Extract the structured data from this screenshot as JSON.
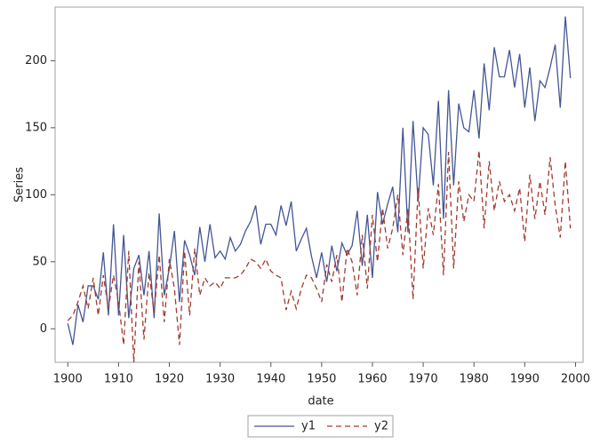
{
  "chart_data": {
    "type": "line",
    "xlabel": "date",
    "ylabel": "Series",
    "x": [
      1900,
      1901,
      1902,
      1903,
      1904,
      1905,
      1906,
      1907,
      1908,
      1909,
      1910,
      1911,
      1912,
      1913,
      1914,
      1915,
      1916,
      1917,
      1918,
      1919,
      1920,
      1921,
      1922,
      1923,
      1924,
      1925,
      1926,
      1927,
      1928,
      1929,
      1930,
      1931,
      1932,
      1933,
      1934,
      1935,
      1936,
      1937,
      1938,
      1939,
      1940,
      1941,
      1942,
      1943,
      1944,
      1945,
      1946,
      1947,
      1948,
      1949,
      1950,
      1951,
      1952,
      1953,
      1954,
      1955,
      1956,
      1957,
      1958,
      1959,
      1960,
      1961,
      1962,
      1963,
      1964,
      1965,
      1966,
      1967,
      1968,
      1969,
      1970,
      1971,
      1972,
      1973,
      1974,
      1975,
      1976,
      1977,
      1978,
      1979,
      1980,
      1981,
      1982,
      1983,
      1984,
      1985,
      1986,
      1987,
      1988,
      1989,
      1990,
      1991,
      1992,
      1993,
      1994,
      1995,
      1996,
      1997,
      1998,
      1999
    ],
    "series": [
      {
        "name": "y1",
        "color": "#445694",
        "dash": "solid",
        "values": [
          4,
          -12,
          18,
          5,
          32,
          32,
          22,
          57,
          10,
          78,
          10,
          70,
          8,
          45,
          55,
          25,
          58,
          8,
          86,
          25,
          45,
          73,
          20,
          66,
          55,
          40,
          76,
          50,
          78,
          53,
          58,
          52,
          68,
          58,
          63,
          73,
          80,
          92,
          63,
          78,
          78,
          70,
          92,
          77,
          95,
          58,
          67,
          75,
          54,
          38,
          57,
          35,
          62,
          43,
          64,
          55,
          62,
          88,
          47,
          85,
          38,
          102,
          78,
          93,
          106,
          72,
          150,
          72,
          155,
          95,
          150,
          145,
          107,
          170,
          82,
          178,
          107,
          168,
          150,
          147,
          178,
          142,
          198,
          163,
          210,
          188,
          188,
          208,
          180,
          205,
          165,
          195,
          155,
          185,
          180,
          195,
          212,
          165,
          233,
          187
        ]
      },
      {
        "name": "y2",
        "color": "#a23a2e",
        "dash": "dashed",
        "values": [
          6,
          10,
          20,
          32,
          15,
          38,
          10,
          40,
          15,
          40,
          20,
          -12,
          58,
          -25,
          50,
          -8,
          42,
          12,
          55,
          5,
          52,
          30,
          -12,
          58,
          10,
          60,
          25,
          38,
          32,
          35,
          30,
          38,
          38,
          38,
          40,
          45,
          52,
          50,
          45,
          52,
          43,
          40,
          38,
          14,
          28,
          15,
          30,
          40,
          38,
          30,
          20,
          48,
          35,
          55,
          20,
          60,
          50,
          25,
          70,
          30,
          85,
          50,
          90,
          60,
          75,
          100,
          55,
          90,
          22,
          105,
          45,
          90,
          70,
          108,
          40,
          132,
          45,
          110,
          80,
          100,
          95,
          133,
          75,
          125,
          88,
          110,
          95,
          100,
          88,
          105,
          65,
          115,
          82,
          110,
          85,
          128,
          92,
          68,
          125,
          75
        ]
      }
    ],
    "xlim": [
      1897.5,
      2001.5
    ],
    "ylim": [
      -25,
      240
    ],
    "xticks": [
      1900,
      1910,
      1920,
      1930,
      1940,
      1950,
      1960,
      1970,
      1980,
      1990,
      2000
    ],
    "yticks": [
      0,
      50,
      100,
      150,
      200
    ],
    "legend": "bottom"
  }
}
